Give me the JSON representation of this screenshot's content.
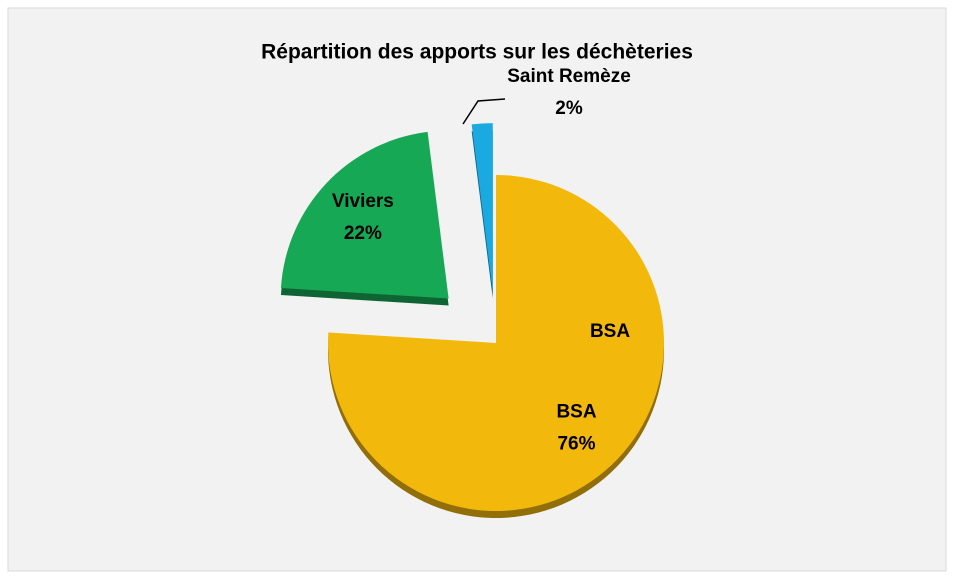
{
  "chart_data": {
    "type": "pie",
    "title": "Répartition des apports sur les déchèteries",
    "categories": [
      "BSA",
      "Viviers",
      "Saint Remèze"
    ],
    "values": [
      76,
      22,
      2
    ],
    "value_labels": [
      "76%",
      "22%",
      "2%"
    ],
    "colors": [
      "#f2b80c",
      "#17a855",
      "#1aa9e0"
    ],
    "annotations": [
      "BSA"
    ]
  }
}
